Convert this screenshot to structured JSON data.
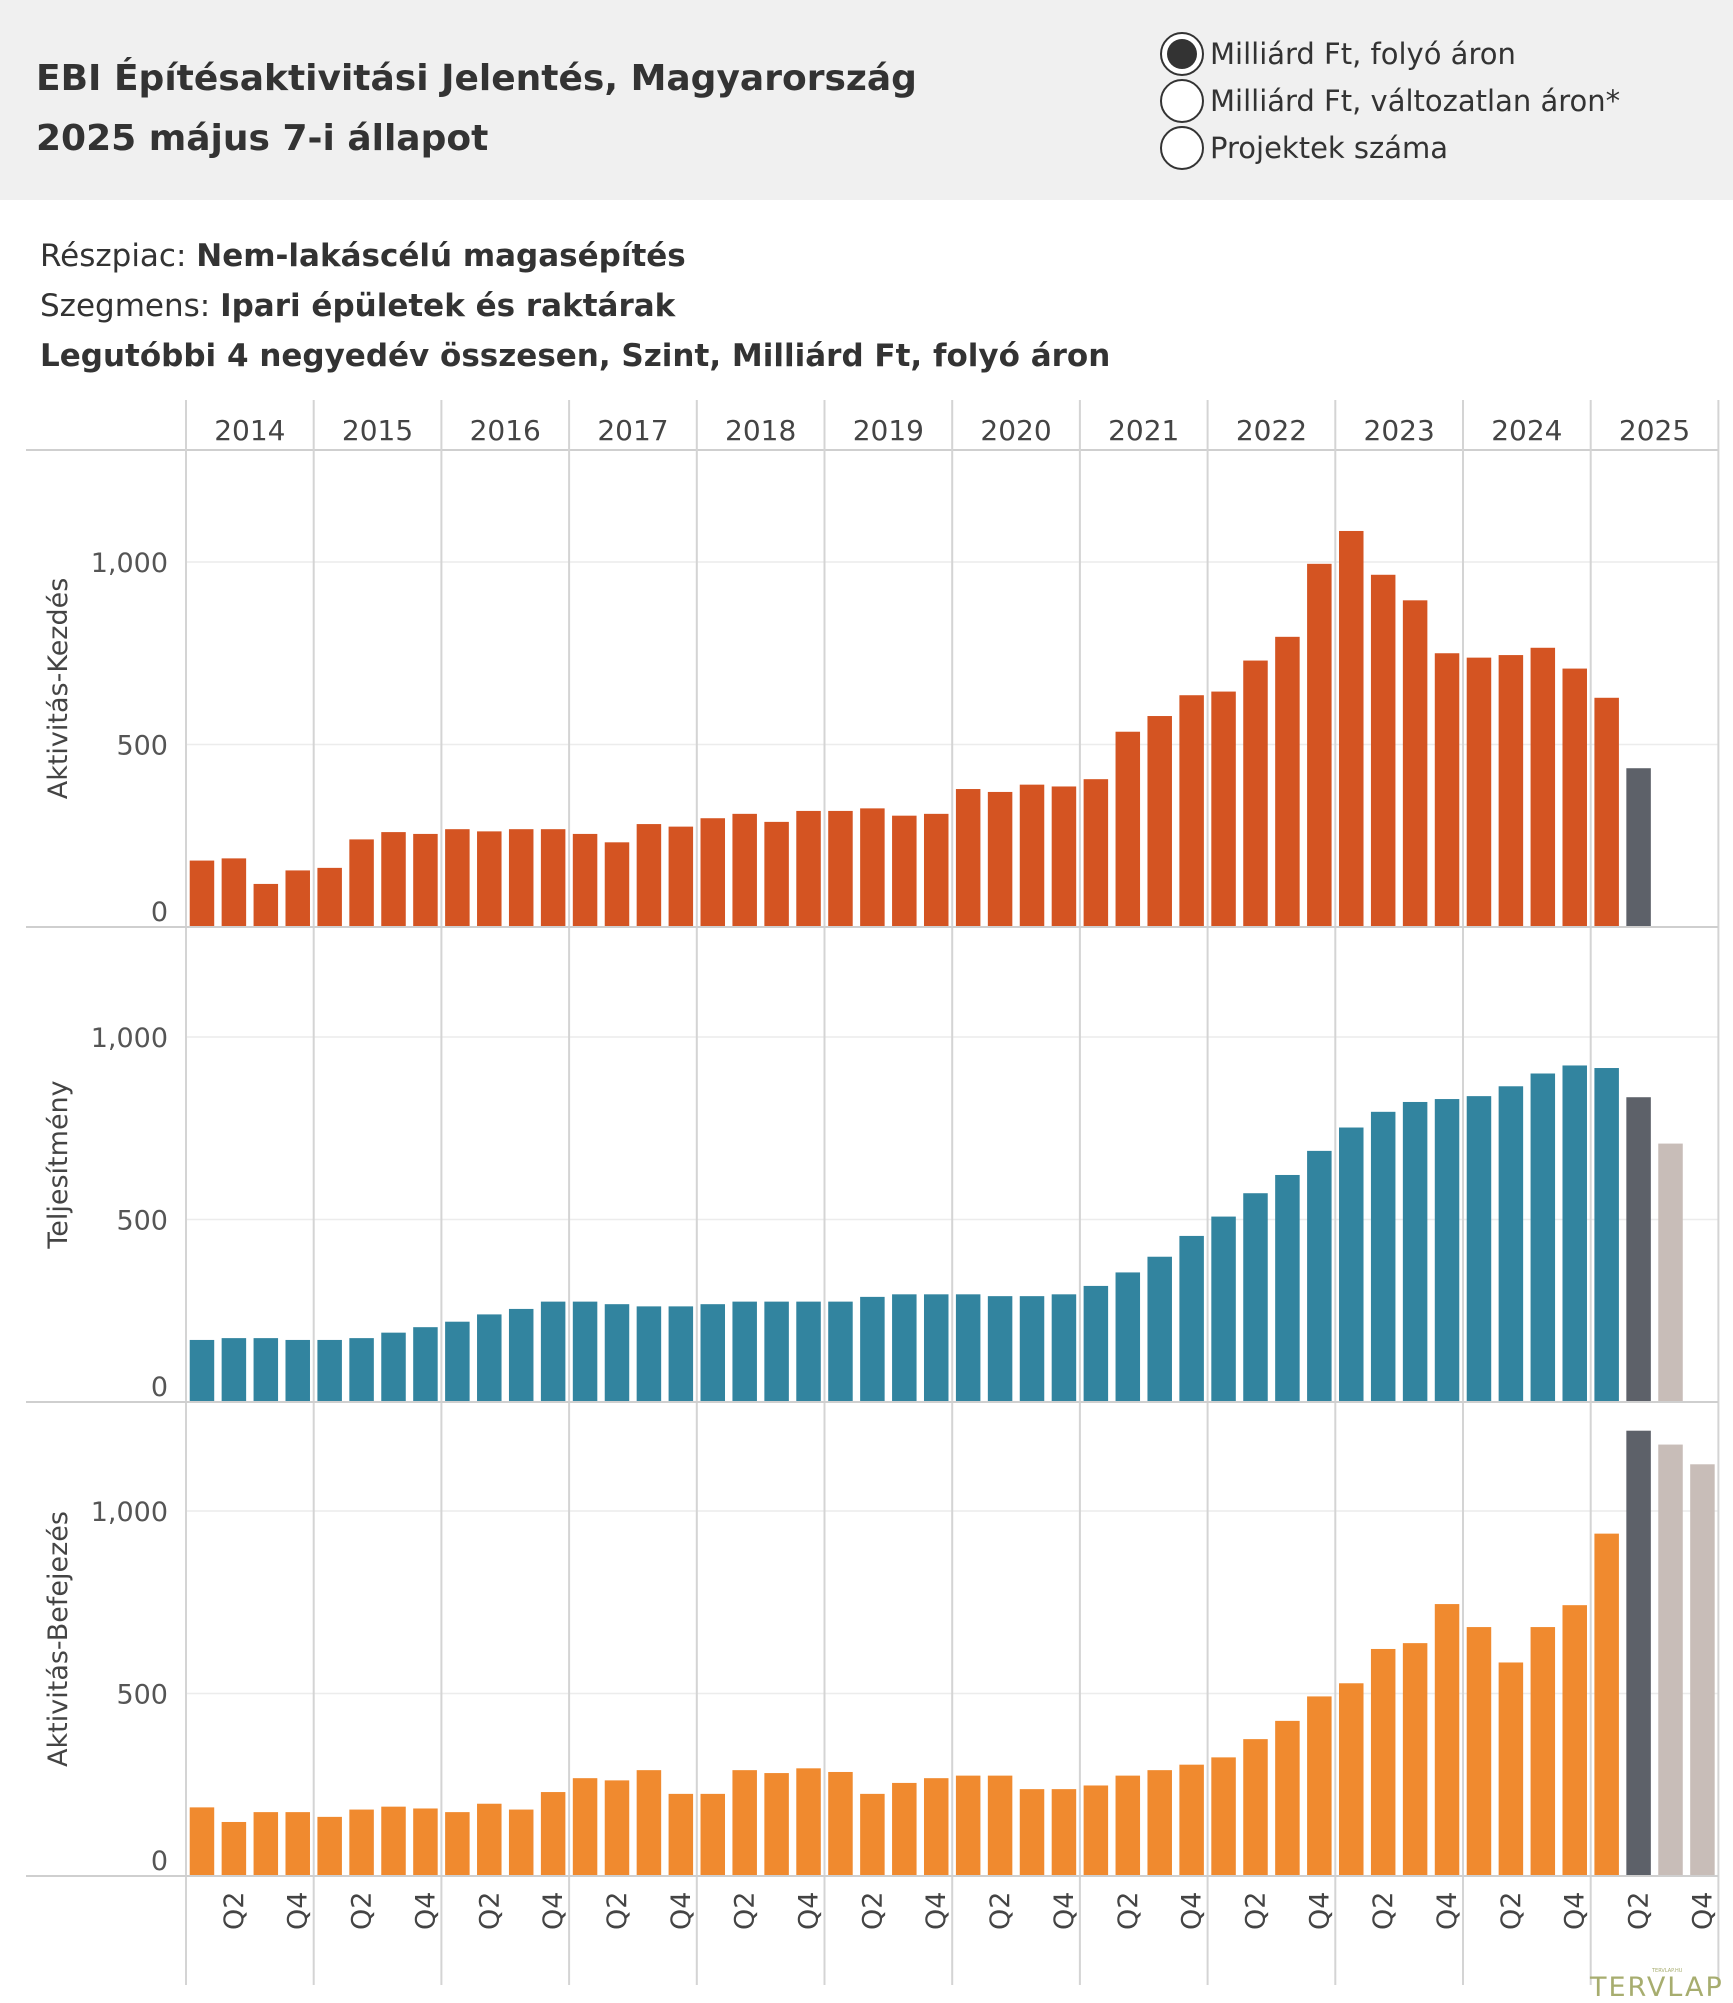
{
  "header": {
    "title_line1": "EBI Építésaktivitási Jelentés, Magyarország",
    "title_line2": "2025 május 7-i állapot",
    "options": [
      {
        "label": "Milliárd Ft, folyó áron",
        "selected": true
      },
      {
        "label": "Milliárd Ft, változatlan áron*",
        "selected": false
      },
      {
        "label": "Projektek száma",
        "selected": false
      }
    ]
  },
  "info": {
    "reszpiac_label": "Részpiac: ",
    "reszpiac_value": "Nem-lakáscélú magasépítés",
    "szegmens_label": "Szegmens: ",
    "szegmens_value": "Ipari épületek és raktárak",
    "measure": "Legutóbbi 4 negyedév összesen, Szint, Milliárd Ft, folyó áron"
  },
  "logo": {
    "text": "TERVLAP",
    "small_text": "TERVLAP.HU"
  },
  "chart_data": {
    "type": "bar",
    "years": [
      "2014",
      "2015",
      "2016",
      "2017",
      "2018",
      "2019",
      "2020",
      "2021",
      "2022",
      "2023",
      "2024",
      "2025"
    ],
    "quarter_tick_labels": [
      "Q2",
      "Q4"
    ],
    "yticks": [
      "0",
      "500",
      "1,000"
    ],
    "ylim": [
      0,
      1280
    ],
    "colors": {
      "actual_dark": "#5d6169",
      "forecast": "#c8bdb8"
    },
    "panels": [
      {
        "ylabel": "Aktivitás-Kezdés",
        "color": "#d45422",
        "values": [
          182,
          188,
          118,
          155,
          162,
          240,
          260,
          255,
          268,
          262,
          268,
          268,
          255,
          232,
          282,
          275,
          298,
          310,
          288,
          318,
          318,
          325,
          305,
          310,
          378,
          370,
          390,
          385,
          405,
          535,
          578,
          635,
          645,
          730,
          795,
          995,
          1085,
          965,
          895,
          750,
          738,
          745,
          765,
          708,
          628,
          435
        ],
        "kind": [
          "actual",
          "actual",
          "actual",
          "actual",
          "actual",
          "actual",
          "actual",
          "actual",
          "actual",
          "actual",
          "actual",
          "actual",
          "actual",
          "actual",
          "actual",
          "actual",
          "actual",
          "actual",
          "actual",
          "actual",
          "actual",
          "actual",
          "actual",
          "actual",
          "actual",
          "actual",
          "actual",
          "actual",
          "actual",
          "actual",
          "actual",
          "actual",
          "actual",
          "actual",
          "actual",
          "actual",
          "actual",
          "actual",
          "actual",
          "actual",
          "actual",
          "actual",
          "actual",
          "actual",
          "actual",
          "dark"
        ]
      },
      {
        "ylabel": "Teljesítmény",
        "color": "#32849f",
        "values": [
          170,
          175,
          175,
          170,
          170,
          175,
          190,
          205,
          220,
          240,
          255,
          275,
          275,
          268,
          262,
          262,
          268,
          275,
          275,
          275,
          275,
          288,
          295,
          295,
          295,
          290,
          290,
          295,
          318,
          355,
          398,
          455,
          508,
          572,
          622,
          688,
          752,
          795,
          822,
          830,
          838,
          865,
          900,
          922,
          915,
          835,
          708
        ],
        "kind": [
          "actual",
          "actual",
          "actual",
          "actual",
          "actual",
          "actual",
          "actual",
          "actual",
          "actual",
          "actual",
          "actual",
          "actual",
          "actual",
          "actual",
          "actual",
          "actual",
          "actual",
          "actual",
          "actual",
          "actual",
          "actual",
          "actual",
          "actual",
          "actual",
          "actual",
          "actual",
          "actual",
          "actual",
          "actual",
          "actual",
          "actual",
          "actual",
          "actual",
          "actual",
          "actual",
          "actual",
          "actual",
          "actual",
          "actual",
          "actual",
          "actual",
          "actual",
          "actual",
          "actual",
          "actual",
          "dark",
          "forecast"
        ]
      },
      {
        "ylabel": "Aktivitás-Befejezés",
        "color": "#f08a2f",
        "values": [
          188,
          148,
          175,
          175,
          162,
          182,
          190,
          185,
          175,
          198,
          182,
          230,
          268,
          262,
          290,
          225,
          225,
          290,
          282,
          295,
          285,
          225,
          255,
          268,
          275,
          275,
          238,
          238,
          248,
          275,
          290,
          305,
          325,
          375,
          425,
          492,
          528,
          622,
          638,
          745,
          682,
          585,
          682,
          742,
          938,
          1220,
          1182,
          1128
        ],
        "kind": [
          "actual",
          "actual",
          "actual",
          "actual",
          "actual",
          "actual",
          "actual",
          "actual",
          "actual",
          "actual",
          "actual",
          "actual",
          "actual",
          "actual",
          "actual",
          "actual",
          "actual",
          "actual",
          "actual",
          "actual",
          "actual",
          "actual",
          "actual",
          "actual",
          "actual",
          "actual",
          "actual",
          "actual",
          "actual",
          "actual",
          "actual",
          "actual",
          "actual",
          "actual",
          "actual",
          "actual",
          "actual",
          "actual",
          "actual",
          "actual",
          "actual",
          "actual",
          "actual",
          "actual",
          "actual",
          "dark",
          "forecast",
          "forecast"
        ]
      }
    ]
  }
}
